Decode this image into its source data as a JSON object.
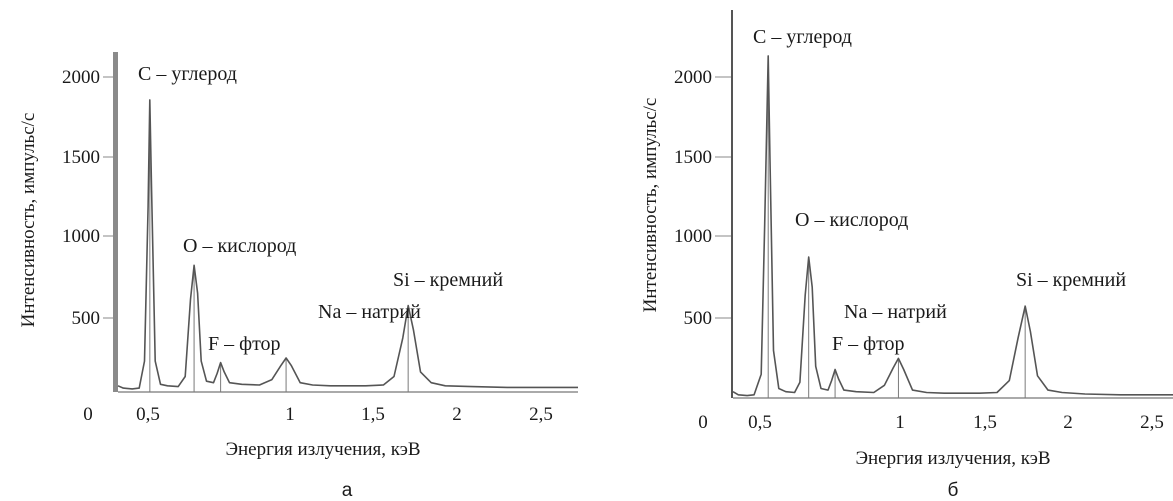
{
  "chart_data": [
    {
      "type": "line",
      "panel_label": "а",
      "xlabel": "Энергия излучения, кэВ",
      "ylabel": "Интенсивность, импульс/с",
      "xlim": [
        0.1,
        2.7
      ],
      "ylim": [
        0,
        2200
      ],
      "x_ticks": [
        "0",
        "0,5",
        "1",
        "1,5",
        "2",
        "2,5"
      ],
      "y_ticks": [
        "2000",
        "1500",
        "1000",
        "500"
      ],
      "peaks": [
        {
          "label": "C – углерод",
          "x": 0.28,
          "y": 1890
        },
        {
          "label": "O – кислород",
          "x": 0.53,
          "y": 820
        },
        {
          "label": "F – фтор",
          "x": 0.68,
          "y": 190
        },
        {
          "label": "Na – натрий",
          "x": 1.05,
          "y": 220
        },
        {
          "label": "Si – кремний",
          "x": 1.74,
          "y": 560
        }
      ],
      "series": [
        {
          "x": [
            0.1,
            0.13,
            0.18,
            0.22,
            0.25,
            0.27,
            0.28,
            0.29,
            0.31,
            0.34,
            0.38,
            0.44,
            0.48,
            0.51,
            0.53,
            0.55,
            0.57,
            0.6,
            0.64,
            0.66,
            0.68,
            0.7,
            0.73,
            0.8,
            0.9,
            0.97,
            1.02,
            1.05,
            1.08,
            1.13,
            1.2,
            1.3,
            1.4,
            1.5,
            1.6,
            1.66,
            1.71,
            1.74,
            1.77,
            1.81,
            1.87,
            1.95,
            2.1,
            2.3,
            2.5,
            2.7
          ],
          "y": [
            40,
            25,
            20,
            25,
            200,
            1200,
            1890,
            1300,
            200,
            50,
            40,
            35,
            100,
            600,
            820,
            640,
            200,
            70,
            60,
            120,
            190,
            130,
            60,
            50,
            45,
            80,
            170,
            220,
            170,
            60,
            45,
            40,
            40,
            40,
            45,
            100,
            350,
            560,
            400,
            130,
            60,
            40,
            35,
            30,
            30,
            30
          ]
        }
      ]
    },
    {
      "type": "line",
      "panel_label": "б",
      "xlabel": "Энергия излучения, кэВ",
      "ylabel": "Интенсивность, импульс/с",
      "xlim": [
        0.1,
        2.6
      ],
      "ylim": [
        0,
        2450
      ],
      "x_ticks": [
        "0",
        "0,5",
        "1",
        "1,5",
        "2",
        "2,5"
      ],
      "y_ticks": [
        "2000",
        "1500",
        "1000",
        "500"
      ],
      "peaks": [
        {
          "label": "C – углерод",
          "x": 0.3,
          "y": 2160
        },
        {
          "label": "O – кислород",
          "x": 0.53,
          "y": 890
        },
        {
          "label": "F – фтор",
          "x": 0.68,
          "y": 180
        },
        {
          "label": "Na – натрий",
          "x": 1.04,
          "y": 250
        },
        {
          "label": "Si – кремний",
          "x": 1.76,
          "y": 580
        }
      ],
      "series": [
        {
          "x": [
            0.1,
            0.13,
            0.18,
            0.22,
            0.26,
            0.28,
            0.3,
            0.31,
            0.33,
            0.36,
            0.4,
            0.45,
            0.48,
            0.51,
            0.53,
            0.55,
            0.57,
            0.6,
            0.64,
            0.66,
            0.68,
            0.7,
            0.73,
            0.8,
            0.9,
            0.96,
            1.01,
            1.04,
            1.07,
            1.12,
            1.2,
            1.3,
            1.4,
            1.5,
            1.6,
            1.67,
            1.72,
            1.76,
            1.79,
            1.83,
            1.89,
            1.97,
            2.1,
            2.3,
            2.45,
            2.6
          ],
          "y": [
            40,
            20,
            15,
            20,
            150,
            1100,
            2160,
            1500,
            300,
            60,
            40,
            35,
            100,
            650,
            890,
            700,
            200,
            60,
            50,
            110,
            180,
            120,
            50,
            40,
            35,
            80,
            190,
            250,
            180,
            50,
            35,
            30,
            30,
            30,
            35,
            110,
            380,
            580,
            420,
            140,
            50,
            35,
            25,
            20,
            20,
            20
          ]
        }
      ]
    }
  ]
}
